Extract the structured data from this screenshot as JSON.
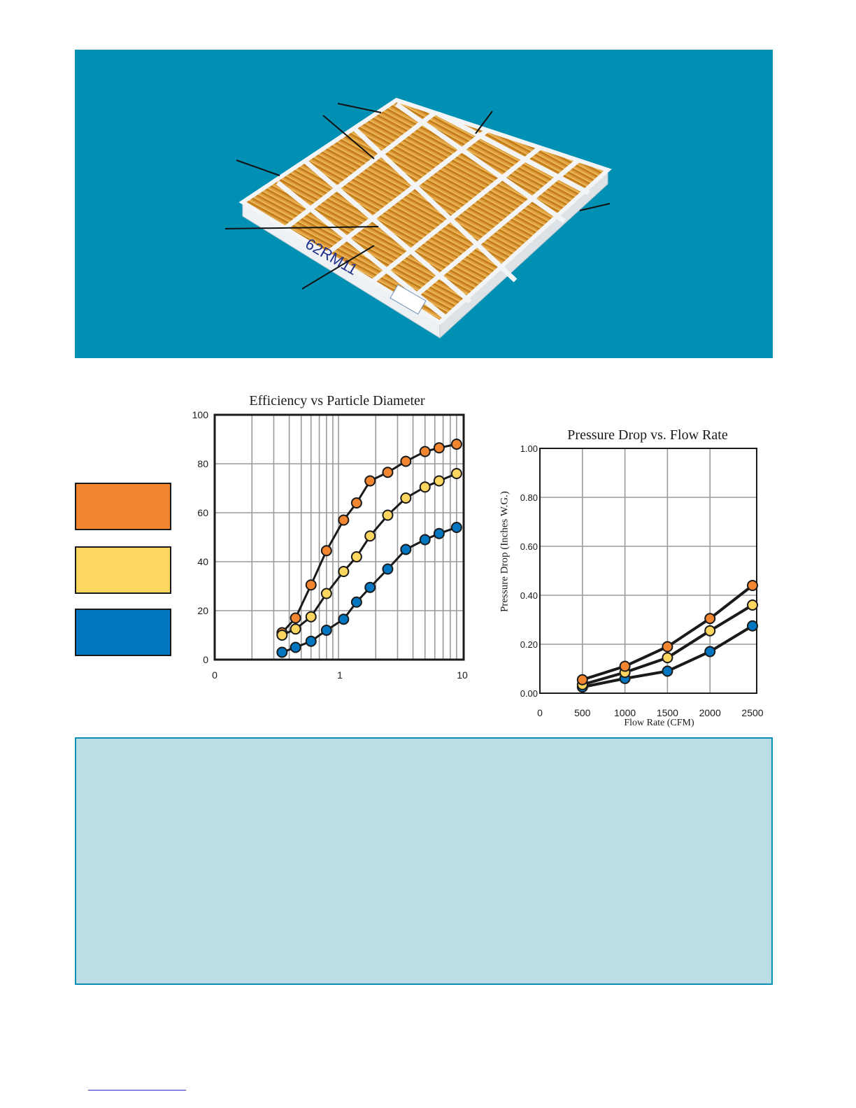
{
  "hero": {
    "background": "#0090b4",
    "product_label": "62RM11",
    "frame_color": "#f2f4f6",
    "media_color": "#e0a040"
  },
  "legend_swatches": [
    {
      "color": "#f28530"
    },
    {
      "color": "#fdd660"
    },
    {
      "color": "#0276c0"
    }
  ],
  "chart_data": [
    {
      "type": "line",
      "title": "Efficiency vs Particle Diameter",
      "xlabel": "",
      "ylabel": "",
      "x_scale": "log",
      "x_ticks": [
        "0",
        "1",
        "10"
      ],
      "y_ticks": [
        "0",
        "20",
        "40",
        "60",
        "80",
        "100"
      ],
      "ylim": [
        0,
        100
      ],
      "grid": true,
      "series": [
        {
          "color": "#f28530",
          "x": [
            0.35,
            0.45,
            0.6,
            0.8,
            1.1,
            1.4,
            1.8,
            2.5,
            3.5,
            5,
            6.5,
            9
          ],
          "y": [
            11,
            17,
            30.5,
            44.5,
            57,
            64,
            73,
            76.5,
            81,
            85,
            86.5,
            88
          ]
        },
        {
          "color": "#fdd660",
          "x": [
            0.35,
            0.45,
            0.6,
            0.8,
            1.1,
            1.4,
            1.8,
            2.5,
            3.5,
            5,
            6.5,
            9
          ],
          "y": [
            10,
            12.5,
            17.5,
            27,
            36,
            42,
            50.5,
            59,
            66,
            70.5,
            73,
            76
          ]
        },
        {
          "color": "#0276c0",
          "x": [
            0.35,
            0.45,
            0.6,
            0.8,
            1.1,
            1.4,
            1.8,
            2.5,
            3.5,
            5,
            6.5,
            9
          ],
          "y": [
            3,
            5,
            7.5,
            12,
            16.5,
            23.5,
            29.5,
            37,
            45,
            49,
            51.5,
            54
          ]
        }
      ]
    },
    {
      "type": "line",
      "title": "Pressure Drop vs. Flow Rate",
      "xlabel": "Flow Rate (CFM)",
      "ylabel": "Pressure Drop (Inches W.G.)",
      "x_ticks": [
        "0",
        "500",
        "1000",
        "1500",
        "2000",
        "2500"
      ],
      "y_ticks": [
        "0.00",
        "0.20",
        "0.40",
        "0.60",
        "0.80",
        "1.00"
      ],
      "xlim": [
        0,
        2500
      ],
      "ylim": [
        0,
        1.0
      ],
      "grid": true,
      "series": [
        {
          "color": "#f28530",
          "x": [
            500,
            1000,
            1500,
            2000,
            2500
          ],
          "y": [
            0.055,
            0.11,
            0.19,
            0.305,
            0.44
          ]
        },
        {
          "color": "#fdd660",
          "x": [
            500,
            1000,
            1500,
            2000,
            2500
          ],
          "y": [
            0.035,
            0.085,
            0.145,
            0.255,
            0.36
          ]
        },
        {
          "color": "#0276c0",
          "x": [
            500,
            1000,
            1500,
            2000,
            2500
          ],
          "y": [
            0.025,
            0.06,
            0.09,
            0.17,
            0.275
          ]
        }
      ]
    }
  ]
}
